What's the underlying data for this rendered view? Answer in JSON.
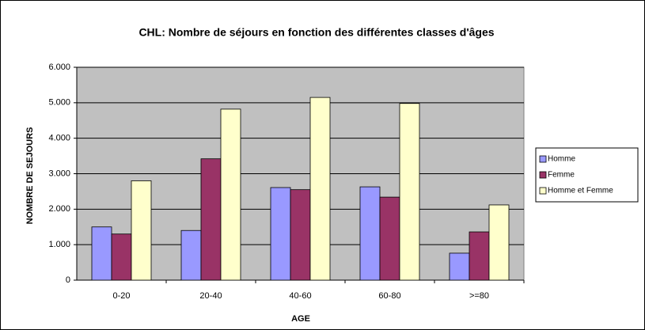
{
  "chart_data": {
    "type": "bar",
    "title": "CHL: Nombre de séjours en fonction des différentes classes d'âges",
    "x_label": "AGE",
    "y_label": "NOMBRE DE SEJOURS",
    "categories": [
      "0-20",
      "20-40",
      "40-60",
      "60-80",
      ">=80"
    ],
    "series": [
      {
        "name": "Homme",
        "color": "#9999ff",
        "values": [
          1500,
          1400,
          2610,
          2630,
          760
        ]
      },
      {
        "name": "Femme",
        "color": "#993366",
        "values": [
          1300,
          3420,
          2550,
          2340,
          1360
        ]
      },
      {
        "name": "Homme  et Femme",
        "color": "#ffffcc",
        "values": [
          2800,
          4820,
          5150,
          4980,
          2120
        ]
      }
    ],
    "ylim": [
      0,
      6000
    ],
    "yticks": [
      0,
      {
        "value": 1000,
        "label": "1.000"
      },
      {
        "value": 2000,
        "label": "2.000"
      },
      {
        "value": 3000,
        "label": "3.000"
      },
      {
        "value": 4000,
        "label": "4.000"
      },
      {
        "value": 5000,
        "label": "5.000"
      },
      {
        "value": 6000,
        "label": "6.000"
      }
    ],
    "grid": true,
    "plot_background": "#c0c0c0",
    "legend": "right"
  }
}
